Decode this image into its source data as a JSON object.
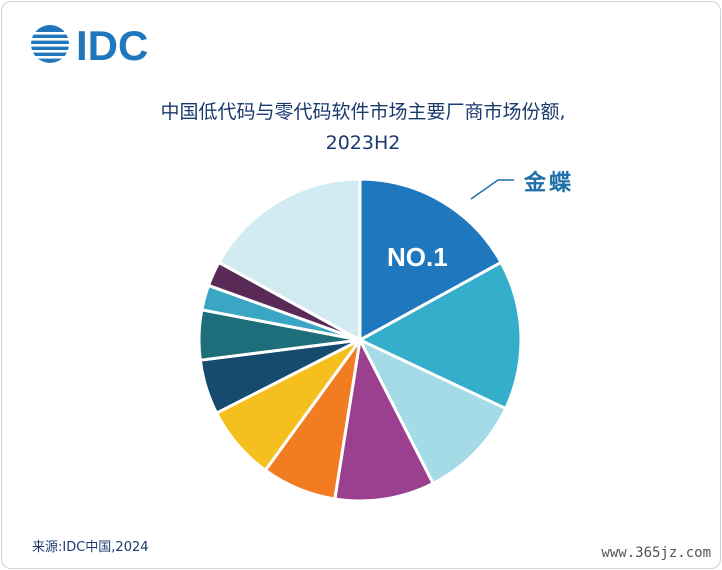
{
  "logo_text": "IDC",
  "title_line1": "中国低代码与零代码软件市场主要厂商市场份额,",
  "title_line2": "2023H2",
  "leader_label": "金蝶",
  "rank_label": "NO.1",
  "source": "来源:IDC中国,2024",
  "watermark": "www.365jz.com",
  "colors": {
    "brand_blue": "#1f77bd",
    "title": "#1a3a6e"
  },
  "chart_data": {
    "type": "pie",
    "title": "中国低代码与零代码软件市场主要厂商市场份额,2023H2",
    "values": [
      17.0,
      15.0,
      10.5,
      10.0,
      7.5,
      7.5,
      5.5,
      5.0,
      2.5,
      2.5,
      17.0
    ],
    "colors": [
      "#1f77bd",
      "#35aecb",
      "#a4dbe6",
      "#9b3f8f",
      "#f27c22",
      "#f5c01d",
      "#164a6f",
      "#1d6d7a",
      "#3aa6c4",
      "#5a2a56",
      "#d2ebf2"
    ],
    "annotations": [
      {
        "slice": 0,
        "text": "NO.1"
      },
      {
        "slice": 0,
        "text": "金蝶"
      }
    ]
  }
}
